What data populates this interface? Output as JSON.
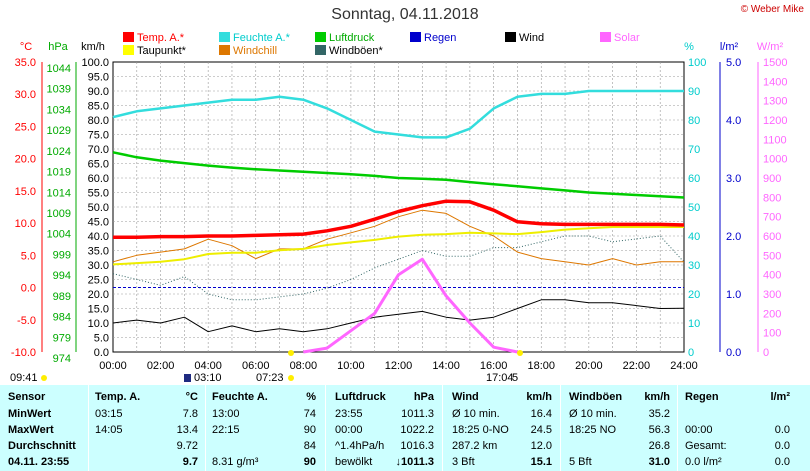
{
  "title": "Sonntag, 04.11.2018",
  "copyright": "© Weber Mike",
  "legend": [
    {
      "label": "Temp. A.*",
      "color": "#ff0000"
    },
    {
      "label": "Feuchte A.*",
      "color": "#33dddd"
    },
    {
      "label": "Luftdruck",
      "color": "#00cc00"
    },
    {
      "label": "Regen",
      "color": "#0000cc"
    },
    {
      "label": "Wind",
      "color": "#000000"
    },
    {
      "label": "Solar",
      "color": "#ff66ff"
    },
    {
      "label": "Taupunkt*",
      "color": "#ffff00"
    },
    {
      "label": "Windchill",
      "color": "#dd7700"
    },
    {
      "label": "Windböen*",
      "color": "#336666"
    }
  ],
  "axis_units": {
    "temp": "°C",
    "press": "hPa",
    "wind": "km/h",
    "hum": "%",
    "rain": "l/m²",
    "solar": "W/m²"
  },
  "axis_ticks": {
    "temp": [
      "35.0",
      "30.0",
      "25.0",
      "20.0",
      "15.0",
      "10.0",
      "5.0",
      "0.0",
      "-5.0",
      "-10.0"
    ],
    "press": [
      "1044",
      "1039",
      "1034",
      "1029",
      "1024",
      "1019",
      "1014",
      "1009",
      "1004",
      "999",
      "994",
      "989",
      "984",
      "979",
      "974"
    ],
    "wind": [
      "100.0",
      "95.0",
      "90.0",
      "85.0",
      "80.0",
      "75.0",
      "70.0",
      "65.0",
      "60.0",
      "55.0",
      "50.0",
      "45.0",
      "40.0",
      "35.0",
      "30.0",
      "25.0",
      "20.0",
      "15.0",
      "10.0",
      "5.0",
      "0.0"
    ],
    "hum": [
      "100",
      "90",
      "80",
      "70",
      "60",
      "50",
      "40",
      "30",
      "20",
      "10",
      "0"
    ],
    "rain": [
      "5.0",
      "4.0",
      "3.0",
      "2.0",
      "1.0",
      "0.0"
    ],
    "solar": [
      "1500",
      "1400",
      "1300",
      "1200",
      "1100",
      "1000",
      "900",
      "800",
      "700",
      "600",
      "500",
      "400",
      "300",
      "200",
      "100",
      "0"
    ],
    "x": [
      "00:00",
      "02:00",
      "04:00",
      "06:00",
      "08:00",
      "10:00",
      "12:00",
      "14:00",
      "16:00",
      "18:00",
      "20:00",
      "22:00",
      "24:00"
    ]
  },
  "time_markers": {
    "time_left": "09:41",
    "sunrise_low": "03:10",
    "sunrise": "07:23",
    "sunset": "17:04",
    "sunset_digit": "5"
  },
  "chart_data": {
    "type": "line",
    "title": "Sonntag, 04.11.2018",
    "x": [
      0,
      1,
      2,
      3,
      4,
      5,
      6,
      7,
      8,
      9,
      10,
      11,
      12,
      13,
      14,
      15,
      16,
      17,
      18,
      19,
      20,
      21,
      22,
      23,
      24
    ],
    "xlim": [
      0,
      24
    ],
    "series": [
      {
        "name": "Temp. A.*",
        "unit": "°C",
        "values": [
          7.8,
          7.8,
          7.9,
          7.9,
          8.0,
          8.0,
          8.1,
          8.2,
          8.3,
          8.8,
          9.5,
          10.6,
          11.8,
          12.7,
          13.4,
          13.3,
          12.0,
          10.2,
          9.9,
          9.8,
          9.8,
          9.8,
          9.8,
          9.8,
          9.7
        ]
      },
      {
        "name": "Feuchte A.*",
        "unit": "%",
        "values": [
          81,
          83,
          84,
          85,
          86,
          87,
          87,
          88,
          87,
          84,
          80,
          76,
          75,
          74,
          74,
          77,
          84,
          88,
          89,
          89,
          90,
          90,
          90,
          90,
          90
        ]
      },
      {
        "name": "Luftdruck",
        "unit": "hPa",
        "values": [
          1022.2,
          1021.0,
          1020.2,
          1019.6,
          1019.0,
          1018.5,
          1018.1,
          1017.8,
          1017.5,
          1017.2,
          1016.9,
          1016.5,
          1016.0,
          1015.8,
          1015.6,
          1015.0,
          1014.5,
          1014.0,
          1013.5,
          1013.0,
          1012.5,
          1012.2,
          1011.9,
          1011.6,
          1011.3
        ]
      },
      {
        "name": "Taupunkt*",
        "unit": "°C",
        "values": [
          3.6,
          3.8,
          4.0,
          4.4,
          5.2,
          5.4,
          5.4,
          5.8,
          6.0,
          6.6,
          7.0,
          7.4,
          7.9,
          8.2,
          8.3,
          8.5,
          8.4,
          8.3,
          8.6,
          9.0,
          9.2,
          9.4,
          9.4,
          9.4,
          9.4
        ]
      },
      {
        "name": "Windchill",
        "unit": "°C",
        "values": [
          4.0,
          5.0,
          5.5,
          6.0,
          7.5,
          6.5,
          4.5,
          6.0,
          6.0,
          7.5,
          8.5,
          9.5,
          11.0,
          12.0,
          11.5,
          9.5,
          8.0,
          5.5,
          4.5,
          4.0,
          3.5,
          4.5,
          3.5,
          4.0,
          4.0
        ]
      },
      {
        "name": "Wind",
        "unit": "km/h",
        "values": [
          10,
          11,
          10,
          12,
          7,
          9,
          7,
          8,
          7,
          8,
          10,
          12,
          13,
          14,
          12,
          11,
          12,
          15,
          18,
          18,
          17,
          17,
          16,
          15,
          15.1
        ]
      },
      {
        "name": "Windböen*",
        "unit": "km/h",
        "values": [
          27,
          25,
          23,
          26,
          20,
          18,
          18,
          19,
          20,
          22,
          25,
          29,
          32,
          35,
          33,
          33,
          36,
          36,
          38,
          40,
          40,
          38,
          39,
          40,
          31
        ]
      },
      {
        "name": "Solar",
        "unit": "W/m²",
        "values": [
          0,
          0,
          0,
          0,
          0,
          0,
          0,
          0,
          0,
          20,
          110,
          200,
          400,
          480,
          290,
          150,
          25,
          0,
          0,
          0,
          0,
          0,
          0,
          0,
          0
        ]
      },
      {
        "name": "Regen",
        "unit": "l/m²",
        "values": [
          0,
          0,
          0,
          0,
          0,
          0,
          0,
          0,
          0,
          0,
          0,
          0,
          0,
          0,
          0,
          0,
          0,
          0,
          0,
          0,
          0,
          0,
          0,
          0,
          0
        ]
      }
    ]
  },
  "table": {
    "headers": [
      "Sensor",
      "Temp. A.",
      "°C",
      "Feuchte A.",
      "%",
      "Luftdruck",
      "hPa",
      "Wind",
      "km/h",
      "Windböen",
      "km/h",
      "Regen",
      "l/m²"
    ],
    "rows": [
      [
        "MinWert",
        "03:15",
        "7.8",
        "13:00",
        "74",
        "23:55",
        "1011.3",
        "Ø 10 min.",
        "16.4",
        "Ø 10 min.",
        "35.2",
        "",
        ""
      ],
      [
        "MaxWert",
        "14:05",
        "13.4",
        "22:15",
        "90",
        "00:00",
        "1022.2",
        "18:25  0-NO",
        "24.5",
        "18:25  NO",
        "56.3",
        "00:00",
        "0.0"
      ],
      [
        "Durchschnitt",
        "",
        "9.72",
        "",
        "84",
        "^1.4hPa/h",
        "1016.3",
        "287.2 km",
        "12.0",
        "",
        "26.8",
        "Gesamt:",
        "0.0"
      ],
      [
        "04.11.  23:55",
        "",
        "9.7",
        "8.31 g/m³",
        "90",
        "bewölkt",
        "↓1011.3",
        "3 Bft",
        "15.1",
        "5 Bft",
        "31.0",
        "0.0 l/m²",
        "0.0"
      ]
    ]
  }
}
